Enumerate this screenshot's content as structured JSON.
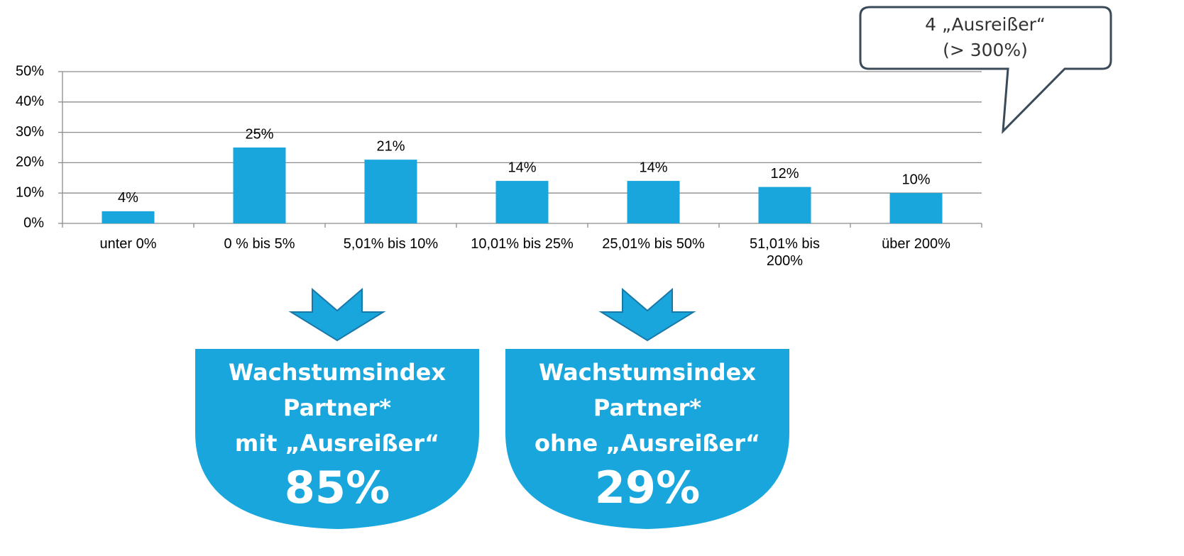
{
  "chart_data": {
    "type": "bar",
    "categories": [
      "unter 0%",
      "0 % bis 5%",
      "5,01% bis 10%",
      "10,01% bis 25%",
      "25,01% bis 50%",
      "51,01% bis\n200%",
      "über 200%"
    ],
    "values": [
      4,
      25,
      21,
      14,
      14,
      12,
      10
    ],
    "value_labels": [
      "4%",
      "25%",
      "21%",
      "14%",
      "14%",
      "12%",
      "10%"
    ],
    "color": "#19a6dd",
    "ylim": [
      0,
      50
    ],
    "yticks": [
      {
        "value": 0,
        "label": "0%"
      },
      {
        "value": 10,
        "label": "10%"
      },
      {
        "value": 20,
        "label": "20%"
      },
      {
        "value": 30,
        "label": "30%"
      },
      {
        "value": 40,
        "label": "40%"
      },
      {
        "value": 50,
        "label": "50%"
      }
    ],
    "grid": true
  },
  "callout": {
    "lines": [
      "4 „Ausreißer“",
      "(> 300%)"
    ]
  },
  "boxes": [
    {
      "lines": [
        "Wachstumsindex",
        "Partner*",
        "mit „Ausreißer“"
      ],
      "value": "85%"
    },
    {
      "lines": [
        "Wachstumsindex",
        "Partner*",
        "ohne „Ausreißer“"
      ],
      "value": "29%"
    }
  ]
}
